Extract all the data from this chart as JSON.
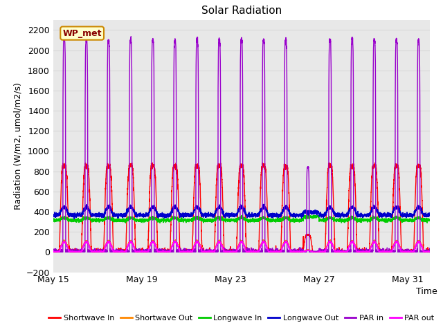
{
  "title": "Solar Radiation",
  "xlabel": "Time",
  "ylabel": "Radiation (W/m2, umol/m2/s)",
  "ylim": [
    -200,
    2300
  ],
  "yticks": [
    -200,
    0,
    200,
    400,
    600,
    800,
    1000,
    1200,
    1400,
    1600,
    1800,
    2000,
    2200
  ],
  "xtick_labels": [
    "May 15",
    "May 19",
    "May 23",
    "May 27",
    "May 31"
  ],
  "xtick_positions": [
    0,
    4,
    8,
    12,
    16
  ],
  "bg_color": "#e8e8e8",
  "fig_color": "#ffffff",
  "grid_color": "#d8d8d8",
  "annotation_text": "WP_met",
  "annotation_bg": "#ffffcc",
  "annotation_border": "#cc8800",
  "annotation_text_color": "#880000",
  "lines": {
    "shortwave_in": {
      "color": "#ff0000",
      "label": "Shortwave In",
      "lw": 1.0
    },
    "shortwave_out": {
      "color": "#ff8800",
      "label": "Shortwave Out",
      "lw": 1.0
    },
    "longwave_in": {
      "color": "#00cc00",
      "label": "Longwave In",
      "lw": 1.0
    },
    "longwave_out": {
      "color": "#0000cc",
      "label": "Longwave Out",
      "lw": 1.0
    },
    "par_in": {
      "color": "#9900cc",
      "label": "PAR in",
      "lw": 1.0
    },
    "par_out": {
      "color": "#ff00ff",
      "label": "PAR out",
      "lw": 1.0
    }
  },
  "n_days": 17,
  "pts_per_day": 288,
  "seed": 42
}
